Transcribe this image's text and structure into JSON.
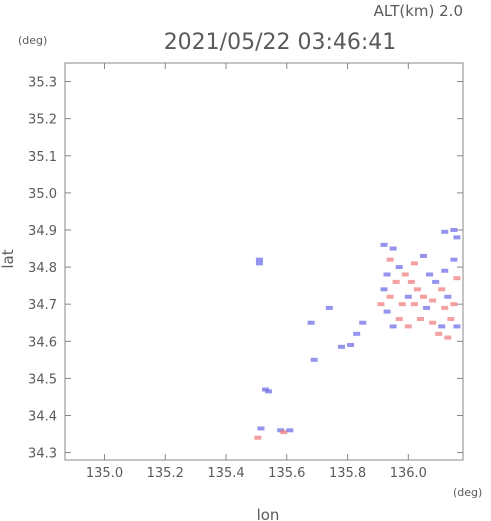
{
  "header": {
    "alt_label": "ALT(km)  2.0",
    "timestamp": "2021/05/22 03:46:41"
  },
  "chart_data": {
    "type": "heatmap",
    "title": "2021/05/22 03:46:41",
    "xlabel": "lon",
    "ylabel": "lat",
    "x_unit": "(deg)",
    "y_unit": "(deg)",
    "xlim": [
      134.87,
      136.18
    ],
    "ylim": [
      34.28,
      35.35
    ],
    "x_ticks": [
      135.0,
      135.2,
      135.4,
      135.6,
      135.8,
      136.0
    ],
    "x_tick_labels": [
      "135.0",
      "135.2",
      "135.4",
      "135.6",
      "135.8",
      "136.0"
    ],
    "y_ticks": [
      34.3,
      34.4,
      34.5,
      34.6,
      34.7,
      34.8,
      34.9,
      35.0,
      35.1,
      35.2,
      35.3
    ],
    "y_tick_labels": [
      "34.3",
      "34.4",
      "34.5",
      "34.6",
      "34.7",
      "34.8",
      "34.9",
      "35.0",
      "35.1",
      "35.2",
      "35.3"
    ],
    "grid": false,
    "colors": {
      "positive": "#f08080",
      "negative": "#7070e8",
      "axis": "#888888",
      "text": "#5a5a5a"
    },
    "series": [
      {
        "values": [
          {
            "lon": 135.51,
            "lat": 34.82,
            "sign": -1
          },
          {
            "lon": 135.51,
            "lat": 34.81,
            "sign": -1
          },
          {
            "lon": 135.53,
            "lat": 34.47,
            "sign": -1
          },
          {
            "lon": 135.54,
            "lat": 34.465,
            "sign": -1
          },
          {
            "lon": 135.505,
            "lat": 34.34,
            "sign": 1
          },
          {
            "lon": 135.515,
            "lat": 34.365,
            "sign": -1
          },
          {
            "lon": 135.58,
            "lat": 34.36,
            "sign": -1
          },
          {
            "lon": 135.59,
            "lat": 34.355,
            "sign": 1
          },
          {
            "lon": 135.61,
            "lat": 34.36,
            "sign": -1
          },
          {
            "lon": 135.74,
            "lat": 34.69,
            "sign": -1
          },
          {
            "lon": 135.68,
            "lat": 34.65,
            "sign": -1
          },
          {
            "lon": 135.78,
            "lat": 34.585,
            "sign": -1
          },
          {
            "lon": 135.81,
            "lat": 34.59,
            "sign": -1
          },
          {
            "lon": 135.83,
            "lat": 34.62,
            "sign": -1
          },
          {
            "lon": 135.85,
            "lat": 34.65,
            "sign": -1
          },
          {
            "lon": 135.69,
            "lat": 34.55,
            "sign": -1
          },
          {
            "lon": 135.92,
            "lat": 34.86,
            "sign": -1
          },
          {
            "lon": 135.95,
            "lat": 34.85,
            "sign": -1
          },
          {
            "lon": 135.94,
            "lat": 34.82,
            "sign": 1
          },
          {
            "lon": 135.97,
            "lat": 34.8,
            "sign": -1
          },
          {
            "lon": 135.93,
            "lat": 34.78,
            "sign": -1
          },
          {
            "lon": 135.96,
            "lat": 34.76,
            "sign": 1
          },
          {
            "lon": 135.92,
            "lat": 34.74,
            "sign": -1
          },
          {
            "lon": 135.94,
            "lat": 34.72,
            "sign": 1
          },
          {
            "lon": 135.91,
            "lat": 34.7,
            "sign": 1
          },
          {
            "lon": 135.93,
            "lat": 34.68,
            "sign": -1
          },
          {
            "lon": 135.99,
            "lat": 34.78,
            "sign": 1
          },
          {
            "lon": 136.01,
            "lat": 34.76,
            "sign": 1
          },
          {
            "lon": 136.03,
            "lat": 34.74,
            "sign": 1
          },
          {
            "lon": 136.05,
            "lat": 34.72,
            "sign": 1
          },
          {
            "lon": 136.0,
            "lat": 34.72,
            "sign": -1
          },
          {
            "lon": 135.98,
            "lat": 34.7,
            "sign": 1
          },
          {
            "lon": 136.02,
            "lat": 34.7,
            "sign": 1
          },
          {
            "lon": 136.06,
            "lat": 34.69,
            "sign": -1
          },
          {
            "lon": 136.09,
            "lat": 34.76,
            "sign": -1
          },
          {
            "lon": 136.11,
            "lat": 34.74,
            "sign": 1
          },
          {
            "lon": 136.13,
            "lat": 34.72,
            "sign": -1
          },
          {
            "lon": 136.08,
            "lat": 34.71,
            "sign": 1
          },
          {
            "lon": 136.12,
            "lat": 34.69,
            "sign": 1
          },
          {
            "lon": 136.15,
            "lat": 34.7,
            "sign": 1
          },
          {
            "lon": 136.04,
            "lat": 34.66,
            "sign": 1
          },
          {
            "lon": 136.08,
            "lat": 34.65,
            "sign": 1
          },
          {
            "lon": 136.11,
            "lat": 34.64,
            "sign": -1
          },
          {
            "lon": 136.14,
            "lat": 34.66,
            "sign": 1
          },
          {
            "lon": 136.1,
            "lat": 34.62,
            "sign": 1
          },
          {
            "lon": 136.13,
            "lat": 34.61,
            "sign": 1
          },
          {
            "lon": 136.16,
            "lat": 34.64,
            "sign": -1
          },
          {
            "lon": 136.07,
            "lat": 34.78,
            "sign": -1
          },
          {
            "lon": 136.12,
            "lat": 34.79,
            "sign": -1
          },
          {
            "lon": 136.16,
            "lat": 34.77,
            "sign": 1
          },
          {
            "lon": 136.15,
            "lat": 34.82,
            "sign": -1
          },
          {
            "lon": 136.02,
            "lat": 34.81,
            "sign": 1
          },
          {
            "lon": 136.05,
            "lat": 34.83,
            "sign": -1
          },
          {
            "lon": 136.12,
            "lat": 34.895,
            "sign": -1
          },
          {
            "lon": 136.15,
            "lat": 34.9,
            "sign": -1
          },
          {
            "lon": 136.16,
            "lat": 34.88,
            "sign": -1
          },
          {
            "lon": 135.97,
            "lat": 34.66,
            "sign": 1
          },
          {
            "lon": 136.0,
            "lat": 34.64,
            "sign": 1
          },
          {
            "lon": 135.95,
            "lat": 34.64,
            "sign": -1
          }
        ]
      }
    ]
  }
}
